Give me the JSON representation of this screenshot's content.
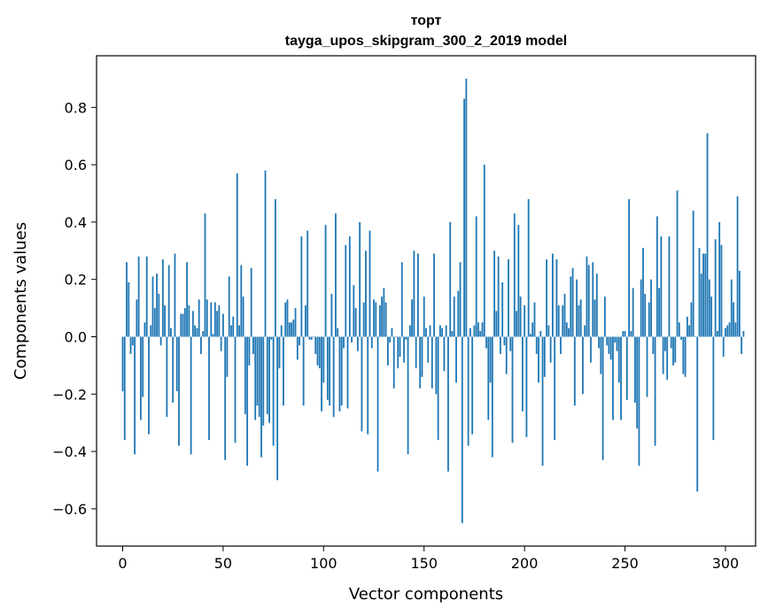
{
  "chart_data": {
    "type": "bar",
    "title": "торт",
    "subtitle": "tayga_upos_skipgram_300_2_2019 model",
    "xlabel": "Vector components",
    "ylabel": "Components values",
    "xlim": [
      -13,
      315
    ],
    "ylim": [
      -0.73,
      0.98
    ],
    "xticks": [
      0,
      50,
      100,
      150,
      200,
      250,
      300
    ],
    "yticks": [
      -0.6,
      -0.4,
      -0.2,
      0.0,
      0.2,
      0.4,
      0.6,
      0.8
    ],
    "ytick_labels": [
      "−0.6",
      "−0.4",
      "−0.2",
      "0.0",
      "0.2",
      "0.4",
      "0.6",
      "0.8"
    ],
    "grid": false,
    "bar_color": "#1f77b4",
    "values": [
      -0.19,
      -0.36,
      0.26,
      0.19,
      -0.06,
      -0.03,
      -0.41,
      0.13,
      0.28,
      -0.29,
      -0.21,
      0.05,
      0.28,
      -0.34,
      0.04,
      0.21,
      0.1,
      0.22,
      0.15,
      -0.03,
      0.27,
      0.11,
      -0.28,
      0.25,
      0.03,
      -0.23,
      0.29,
      -0.19,
      -0.38,
      0.08,
      0.08,
      0.1,
      0.26,
      0.11,
      -0.41,
      0.09,
      0.04,
      0.03,
      0.13,
      -0.06,
      0.02,
      0.43,
      0.13,
      -0.36,
      0.12,
      0.01,
      0.12,
      0.09,
      0.11,
      -0.05,
      0.08,
      -0.43,
      -0.14,
      0.21,
      0.04,
      0.07,
      -0.37,
      0.57,
      0.04,
      0.25,
      0.14,
      -0.27,
      -0.45,
      -0.1,
      0.24,
      -0.06,
      -0.29,
      -0.24,
      -0.28,
      -0.42,
      -0.31,
      0.58,
      -0.27,
      -0.3,
      -0.01,
      -0.38,
      0.48,
      -0.5,
      -0.11,
      0.04,
      -0.24,
      0.12,
      0.13,
      0.05,
      0.05,
      0.06,
      0.1,
      -0.08,
      -0.03,
      0.35,
      -0.24,
      0.11,
      0.37,
      -0.01,
      -0.01,
      0.0,
      -0.06,
      -0.1,
      -0.11,
      -0.26,
      -0.16,
      0.39,
      -0.22,
      -0.24,
      0.15,
      -0.28,
      0.43,
      0.03,
      -0.26,
      -0.24,
      -0.04,
      0.32,
      -0.25,
      0.35,
      -0.02,
      0.18,
      0.1,
      -0.05,
      0.4,
      -0.33,
      0.12,
      0.3,
      -0.34,
      0.37,
      -0.04,
      0.13,
      0.12,
      -0.47,
      0.11,
      0.14,
      0.17,
      0.12,
      -0.1,
      -0.02,
      0.03,
      -0.18,
      0.0,
      -0.11,
      -0.07,
      0.26,
      -0.09,
      -0.01,
      -0.41,
      0.04,
      0.13,
      0.3,
      -0.11,
      0.29,
      -0.18,
      -0.14,
      0.14,
      0.03,
      -0.09,
      0.04,
      -0.18,
      0.29,
      -0.2,
      -0.36,
      0.04,
      0.03,
      -0.12,
      0.04,
      -0.47,
      0.4,
      0.02,
      0.14,
      -0.16,
      0.16,
      0.26,
      -0.65,
      0.83,
      0.9,
      -0.38,
      0.03,
      -0.34,
      0.04,
      0.42,
      0.05,
      0.02,
      0.05,
      0.6,
      -0.04,
      -0.29,
      -0.16,
      -0.42,
      0.3,
      0.09,
      0.28,
      -0.06,
      0.19,
      -0.03,
      -0.13,
      0.27,
      -0.05,
      -0.37,
      0.43,
      0.09,
      0.39,
      0.14,
      -0.26,
      0.11,
      -0.35,
      0.48,
      0.01,
      0.05,
      0.12,
      -0.06,
      -0.16,
      0.02,
      -0.45,
      -0.14,
      0.27,
      0.04,
      -0.09,
      0.29,
      -0.36,
      0.27,
      0.11,
      -0.06,
      0.11,
      0.15,
      0.05,
      0.03,
      0.21,
      0.24,
      -0.24,
      0.2,
      0.11,
      0.13,
      -0.2,
      0.04,
      0.28,
      0.25,
      -0.09,
      0.26,
      0.13,
      0.22,
      -0.04,
      -0.13,
      -0.43,
      0.14,
      -0.03,
      -0.06,
      -0.08,
      -0.29,
      -0.02,
      -0.05,
      -0.16,
      -0.29,
      0.02,
      0.02,
      -0.22,
      0.48,
      0.02,
      0.17,
      -0.23,
      -0.32,
      -0.45,
      0.2,
      0.31,
      0.15,
      -0.21,
      0.12,
      0.2,
      -0.06,
      -0.38,
      0.42,
      0.17,
      0.35,
      -0.13,
      -0.05,
      -0.15,
      0.35,
      -0.04,
      -0.1,
      -0.09,
      0.51,
      0.05,
      -0.01,
      -0.13,
      -0.14,
      0.07,
      0.04,
      0.12,
      0.44,
      0.0,
      -0.54,
      0.31,
      0.22,
      0.29,
      0.29,
      0.71,
      0.2,
      0.14,
      -0.36,
      0.34,
      0.02,
      0.4,
      0.32,
      -0.07,
      0.03,
      0.04,
      0.05,
      0.2,
      0.12,
      0.05,
      0.49,
      0.23,
      -0.06,
      0.02
    ]
  }
}
